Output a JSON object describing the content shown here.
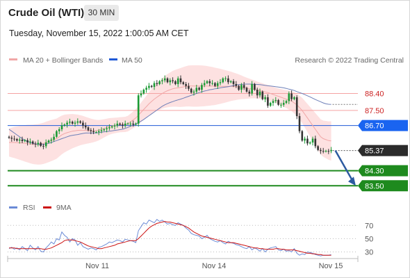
{
  "header": {
    "instrument": "Crude Oil (WTI)",
    "timeframe": "30 MIN",
    "timestamp": "Tuesday, November 15, 2022 1:00:05 AM CET"
  },
  "legend": {
    "bollinger": "MA 20 + Bollinger Bands",
    "ma50": "MA 50",
    "copyright": "Research © 2022 Trading Central",
    "rsi": "RSI",
    "rsi_ma": "9MA"
  },
  "colors": {
    "up": "#1a9a34",
    "down": "#333333",
    "resistance": "#f5a3a3",
    "resistance_label": "#cc2222",
    "pivot": "#1f59d6",
    "pivot_tag": "#1a64f0",
    "support": "#1f8a1f",
    "support_tag": "#1e8a1e",
    "current_tag": "#2b2b2b",
    "bollinger_fill": "#fde1e1",
    "ma20": "#f0a7a7",
    "ma50": "#6d7fb8",
    "rsi": "#6b8bd6",
    "rsi_ma": "#cc1111",
    "arrow": "#2c5aa0"
  },
  "chart_data": [
    {
      "type": "candlestick",
      "title": "Crude Oil (WTI)",
      "x_tick_labels": [
        "Nov 11",
        "Nov 14",
        "Nov 15"
      ],
      "levels": {
        "resistance": [
          88.4,
          87.5
        ],
        "pivot": 86.7,
        "current": 85.37,
        "support": [
          84.3,
          83.5
        ]
      },
      "level_labels": {
        "r1": "88.40",
        "r2": "87.50",
        "pivot": "86.70",
        "current": "85.37",
        "s1": "84.30",
        "s2": "83.50"
      },
      "forecast": {
        "from": 85.37,
        "to": 83.5,
        "direction": "down"
      },
      "ylim": [
        83.4,
        89.6
      ],
      "close": [
        86.05,
        86.0,
        85.98,
        85.9,
        85.95,
        85.87,
        85.92,
        85.8,
        85.85,
        85.74,
        85.7,
        85.78,
        85.62,
        85.6,
        85.8,
        85.9,
        85.95,
        86.1,
        86.4,
        86.5,
        86.7,
        86.75,
        86.85,
        86.9,
        86.8,
        86.85,
        86.92,
        86.85,
        86.7,
        86.6,
        86.45,
        86.4,
        86.35,
        86.35,
        86.4,
        86.45,
        86.5,
        86.55,
        86.6,
        86.65,
        86.7,
        86.8,
        86.75,
        86.7,
        86.8,
        86.8,
        86.8,
        86.75,
        86.8,
        88.3,
        88.4,
        88.6,
        88.7,
        88.8,
        88.75,
        88.95,
        88.9,
        89.05,
        89.1,
        89.2,
        89.0,
        89.1,
        89.05,
        88.9,
        89.2,
        89.0,
        88.9,
        88.8,
        88.65,
        88.45,
        88.5,
        88.7,
        88.6,
        88.85,
        88.95,
        89.05,
        88.95,
        88.95,
        88.8,
        88.95,
        89.0,
        89.2,
        89.2,
        89.0,
        89.05,
        88.9,
        88.8,
        88.6,
        88.85,
        88.7,
        88.5,
        88.4,
        88.9,
        88.6,
        88.3,
        88.5,
        88.1,
        88.2,
        87.75,
        87.9,
        88.0,
        88.05,
        87.8,
        87.8,
        87.9,
        88.0,
        88.4,
        88.1,
        88.2,
        87.2,
        86.4,
        85.9,
        86.0,
        85.75,
        85.8,
        86.0,
        85.6,
        85.4,
        85.35,
        85.33,
        85.35,
        85.34,
        85.4
      ],
      "ma20": [
        85.8,
        85.8,
        85.8,
        85.79,
        85.78,
        85.77,
        85.75,
        85.74,
        85.72,
        85.7,
        85.7,
        85.7,
        85.72,
        85.75,
        85.8,
        85.85,
        85.9,
        85.95,
        86.0,
        86.1,
        86.2,
        86.27,
        86.32,
        86.36,
        86.4,
        86.42,
        86.44,
        86.45,
        86.45,
        86.44,
        86.43,
        86.42,
        86.42,
        86.43,
        86.45,
        86.5,
        86.55,
        86.6,
        86.65,
        86.68,
        86.7,
        86.72,
        86.74,
        86.75,
        86.76,
        86.8,
        86.9,
        87.0,
        87.1,
        87.25,
        87.4,
        87.55,
        87.7,
        87.85,
        87.98,
        88.1,
        88.2,
        88.3,
        88.4,
        88.48,
        88.55,
        88.6,
        88.65,
        88.68,
        88.7,
        88.72,
        88.75,
        88.78,
        88.8,
        88.8,
        88.8,
        88.8,
        88.8,
        88.8,
        88.8,
        88.8,
        88.79,
        88.79,
        88.78,
        88.78,
        88.78,
        88.78,
        88.78,
        88.78,
        88.78,
        88.77,
        88.76,
        88.75,
        88.73,
        88.7,
        88.68,
        88.66,
        88.64,
        88.62,
        88.58,
        88.55,
        88.52,
        88.48,
        88.45,
        88.4,
        88.35,
        88.3,
        88.25,
        88.2,
        88.15,
        88.1,
        88.05,
        88.0,
        87.9,
        87.8,
        87.65,
        87.5,
        87.3,
        87.1,
        86.9,
        86.7,
        86.5,
        86.3,
        86.1,
        86.0,
        85.95,
        85.9,
        85.88
      ],
      "ma50": [
        86.5,
        86.4,
        86.3,
        86.2,
        86.1,
        86.0,
        85.92,
        85.85,
        85.8,
        85.75,
        85.72,
        85.7,
        85.7,
        85.7,
        85.72,
        85.75,
        85.8,
        85.85,
        85.9,
        85.95,
        86.0,
        86.05,
        86.1,
        86.15,
        86.18,
        86.2,
        86.22,
        86.25,
        86.28,
        86.3,
        86.3,
        86.3,
        86.3,
        86.3,
        86.32,
        86.34,
        86.36,
        86.38,
        86.4,
        86.42,
        86.44,
        86.46,
        86.48,
        86.5,
        86.55,
        86.6,
        86.66,
        86.72,
        86.78,
        86.85,
        86.93,
        87.02,
        87.12,
        87.22,
        87.32,
        87.42,
        87.52,
        87.62,
        87.72,
        87.8,
        87.86,
        87.92,
        87.97,
        88.02,
        88.06,
        88.1,
        88.15,
        88.2,
        88.25,
        88.3,
        88.35,
        88.4,
        88.45,
        88.49,
        88.53,
        88.56,
        88.6,
        88.62,
        88.65,
        88.67,
        88.7,
        88.72,
        88.74,
        88.76,
        88.79,
        88.82,
        88.85,
        88.87,
        88.88,
        88.9,
        88.9,
        88.9,
        88.9,
        88.89,
        88.88,
        88.87,
        88.85,
        88.83,
        88.81,
        88.8,
        88.78,
        88.76,
        88.74,
        88.72,
        88.7,
        88.67,
        88.63,
        88.6,
        88.56,
        88.5,
        88.45,
        88.4,
        88.34,
        88.28,
        88.22,
        88.15,
        88.08,
        88.02,
        87.96,
        87.9,
        87.85,
        87.83,
        87.82
      ]
    },
    {
      "type": "line",
      "title": "RSI",
      "ylim": [
        20,
        85
      ],
      "ytick_labels": [
        "70",
        "50",
        "30"
      ],
      "series": [
        {
          "name": "RSI",
          "values": [
            35,
            37,
            34,
            36,
            33,
            38,
            35,
            32,
            40,
            36,
            33,
            38,
            31,
            30,
            36,
            40,
            45,
            42,
            50,
            48,
            60,
            55,
            52,
            45,
            50,
            48,
            40,
            44,
            38,
            36,
            34,
            36,
            35,
            33,
            37,
            38,
            40,
            42,
            45,
            44,
            46,
            48,
            47,
            45,
            49,
            48,
            47,
            46,
            44,
            62,
            68,
            74,
            72,
            78,
            76,
            74,
            79,
            76,
            78,
            75,
            72,
            73,
            71,
            70,
            74,
            72,
            70,
            66,
            63,
            58,
            56,
            55,
            54,
            50,
            52,
            55,
            50,
            48,
            46,
            45,
            47,
            44,
            42,
            46,
            44,
            43,
            41,
            40,
            38,
            36,
            35,
            38,
            33,
            36,
            34,
            31,
            35,
            30,
            34,
            36,
            37,
            38,
            33,
            32,
            34,
            31,
            32,
            30,
            35,
            28,
            25,
            27,
            26,
            30,
            29,
            28,
            26,
            25,
            24,
            25,
            25,
            25,
            26
          ]
        },
        {
          "name": "9MA",
          "values": [
            36,
            36,
            36,
            35,
            35,
            35,
            35,
            35,
            35,
            35,
            35,
            35,
            35,
            34,
            34,
            35,
            36,
            38,
            40,
            42,
            44,
            47,
            48,
            48,
            48,
            47,
            46,
            45,
            43,
            41,
            39,
            38,
            37,
            36,
            35,
            35,
            36,
            37,
            38,
            39,
            40,
            42,
            43,
            44,
            45,
            46,
            47,
            47,
            47,
            50,
            54,
            58,
            62,
            66,
            69,
            71,
            73,
            74,
            75,
            76,
            75,
            75,
            74,
            73,
            72,
            71,
            70,
            68,
            66,
            63,
            60,
            58,
            56,
            54,
            53,
            52,
            51,
            50,
            49,
            48,
            47,
            46,
            45,
            44,
            44,
            44,
            43,
            42,
            41,
            40,
            39,
            38,
            37,
            36,
            36,
            35,
            35,
            34,
            34,
            34,
            34,
            35,
            35,
            34,
            34,
            33,
            33,
            33,
            33,
            32,
            31,
            30,
            29,
            28,
            28,
            27,
            27,
            26,
            26,
            25,
            25,
            25,
            25
          ]
        }
      ]
    }
  ]
}
